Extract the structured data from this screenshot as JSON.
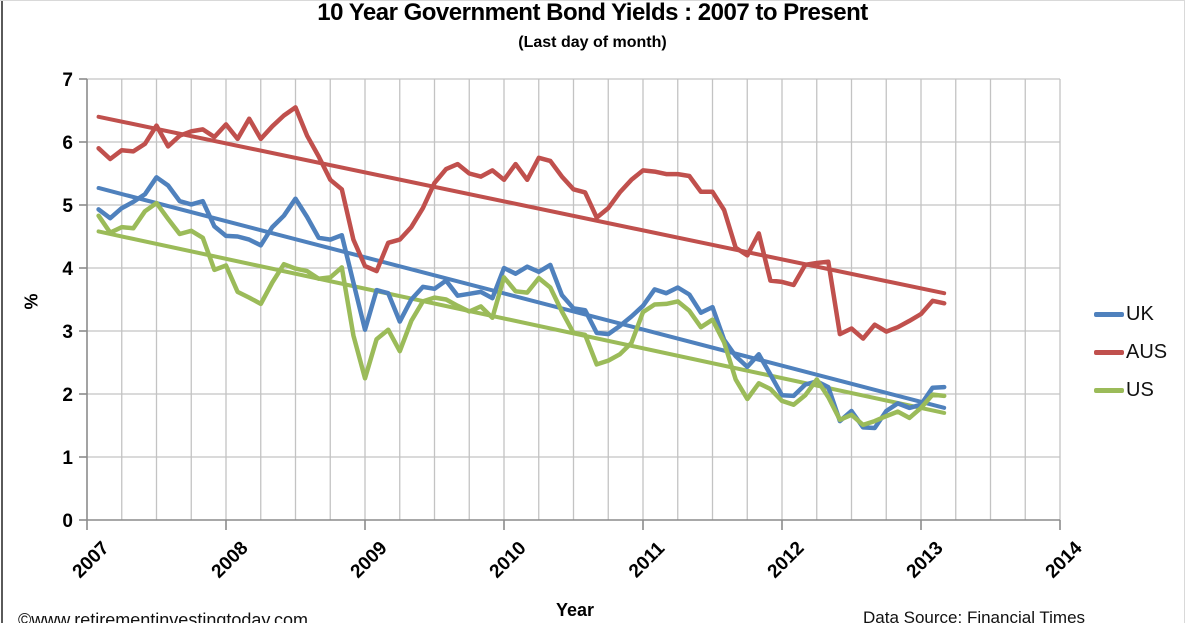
{
  "page": {
    "footer_left": "©www.retirementinvestingtoday.com",
    "footer_right": "Data Source: Financial Times"
  },
  "chart_data": {
    "type": "line",
    "title": "10 Year Government Bond Yields : 2007 to Present",
    "subtitle": "(Last day of month)",
    "xlabel": "Year",
    "ylabel": "%",
    "ylim": [
      0,
      7
    ],
    "y_ticks": [
      0,
      1,
      2,
      3,
      4,
      5,
      6,
      7
    ],
    "x_tick_labels": [
      "2007",
      "2008",
      "2009",
      "2010",
      "2011",
      "2012",
      "2013",
      "2014"
    ],
    "point_interval": "monthly (last day of month)",
    "first_point": "Jan 2007",
    "last_point": "Feb 2013",
    "grid": {
      "horizontal": "every 1%",
      "vertical": "quarterly",
      "visible": true
    },
    "legend_position": "right",
    "axis_color": "#8c8c8c",
    "grid_color": "#c3c3c3",
    "series": [
      {
        "name": "UK",
        "color": "#4F81BD",
        "values": [
          4.93,
          4.79,
          4.95,
          5.05,
          5.17,
          5.44,
          5.31,
          5.06,
          5.01,
          5.06,
          4.66,
          4.51,
          4.5,
          4.45,
          4.36,
          4.65,
          4.83,
          5.1,
          4.81,
          4.48,
          4.45,
          4.52,
          3.77,
          3.02,
          3.65,
          3.6,
          3.15,
          3.5,
          3.7,
          3.67,
          3.8,
          3.56,
          3.59,
          3.62,
          3.52,
          4.0,
          3.91,
          4.02,
          3.94,
          4.05,
          3.57,
          3.36,
          3.33,
          2.97,
          2.95,
          3.08,
          3.23,
          3.4,
          3.66,
          3.6,
          3.69,
          3.58,
          3.29,
          3.38,
          2.86,
          2.6,
          2.43,
          2.63,
          2.31,
          1.98,
          1.97,
          2.15,
          2.2,
          2.11,
          1.57,
          1.73,
          1.47,
          1.46,
          1.73,
          1.85,
          1.78,
          1.83,
          2.1,
          2.11
        ]
      },
      {
        "name": "AUS",
        "color": "#C0504D",
        "values": [
          5.9,
          5.73,
          5.87,
          5.85,
          5.97,
          6.26,
          5.93,
          6.1,
          6.17,
          6.2,
          6.08,
          6.28,
          6.05,
          6.37,
          6.05,
          6.25,
          6.42,
          6.55,
          6.1,
          5.77,
          5.4,
          5.25,
          4.45,
          4.03,
          3.95,
          4.4,
          4.45,
          4.65,
          4.95,
          5.35,
          5.57,
          5.65,
          5.5,
          5.45,
          5.55,
          5.4,
          5.65,
          5.4,
          5.75,
          5.7,
          5.45,
          5.25,
          5.2,
          4.8,
          4.95,
          5.2,
          5.4,
          5.55,
          5.53,
          5.49,
          5.49,
          5.46,
          5.21,
          5.21,
          4.92,
          4.32,
          4.2,
          4.55,
          3.8,
          3.78,
          3.73,
          4.05,
          4.08,
          4.1,
          2.95,
          3.04,
          2.88,
          3.1,
          2.99,
          3.06,
          3.16,
          3.27,
          3.48,
          3.44
        ]
      },
      {
        "name": "US",
        "color": "#9BBB59",
        "values": [
          4.83,
          4.56,
          4.65,
          4.63,
          4.9,
          5.03,
          4.78,
          4.54,
          4.59,
          4.48,
          3.97,
          4.04,
          3.62,
          3.53,
          3.43,
          3.77,
          4.06,
          3.99,
          3.95,
          3.83,
          3.85,
          4.01,
          2.93,
          2.25,
          2.87,
          3.02,
          2.68,
          3.16,
          3.47,
          3.53,
          3.5,
          3.4,
          3.31,
          3.39,
          3.21,
          3.85,
          3.63,
          3.61,
          3.84,
          3.69,
          3.31,
          2.97,
          2.94,
          2.47,
          2.53,
          2.63,
          2.81,
          3.3,
          3.42,
          3.43,
          3.47,
          3.32,
          3.06,
          3.18,
          2.82,
          2.23,
          1.92,
          2.17,
          2.08,
          1.89,
          1.83,
          1.98,
          2.23,
          1.95,
          1.59,
          1.67,
          1.51,
          1.57,
          1.65,
          1.72,
          1.62,
          1.78,
          1.99,
          1.97
        ]
      }
    ],
    "trend_lines": [
      {
        "series": "UK",
        "color": "#4F81BD",
        "start": 5.27,
        "end": 1.78
      },
      {
        "series": "AUS",
        "color": "#C0504D",
        "start": 6.4,
        "end": 3.6
      },
      {
        "series": "US",
        "color": "#9BBB59",
        "start": 4.58,
        "end": 1.7
      }
    ]
  }
}
